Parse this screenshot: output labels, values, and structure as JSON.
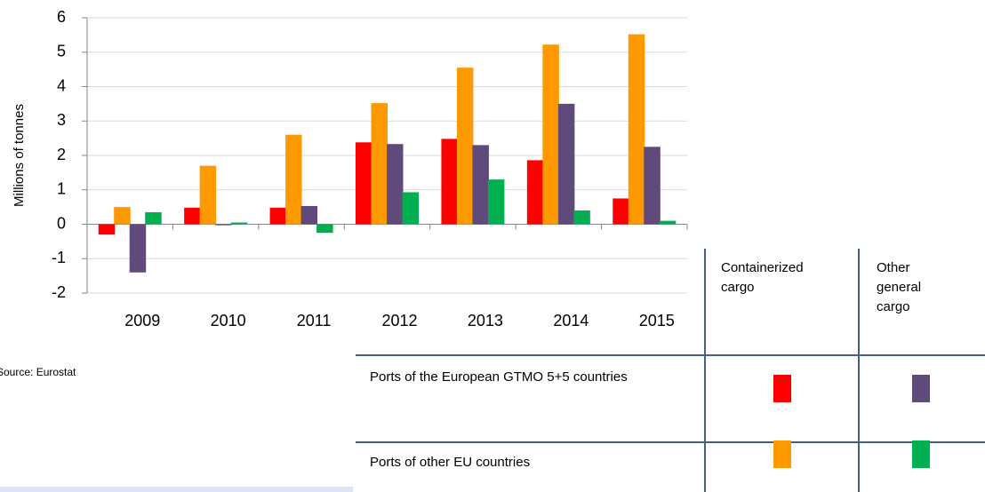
{
  "chart_data": {
    "type": "bar",
    "y_label": "Millions of tonnes",
    "source": "Source: Eurostat",
    "categories": [
      "2009",
      "2010",
      "2011",
      "2012",
      "2013",
      "2014",
      "2015"
    ],
    "series": [
      {
        "color": "#ff0000",
        "values": [
          -0.3,
          0.48,
          0.48,
          2.38,
          2.48,
          1.86,
          0.75
        ]
      },
      {
        "color": "#ff9900",
        "values": [
          0.5,
          1.7,
          2.6,
          3.52,
          4.55,
          5.22,
          5.52
        ]
      },
      {
        "color": "#604a7b",
        "values": [
          -1.4,
          -0.03,
          0.53,
          2.33,
          2.3,
          3.5,
          2.25
        ]
      },
      {
        "color": "#00b050",
        "values": [
          0.35,
          0.05,
          -0.25,
          0.93,
          1.3,
          0.4,
          0.1
        ]
      }
    ],
    "legend": {
      "columns": [
        "Containerized cargo",
        "Other general cargo"
      ],
      "rows": [
        "Ports of the European GTMO 5+5 countries",
        "Ports of other EU countries"
      ]
    },
    "ylim": [
      -2,
      6
    ],
    "yticks": [
      -2,
      -1,
      0,
      1,
      2,
      3,
      4,
      5,
      6
    ],
    "grid": true
  }
}
